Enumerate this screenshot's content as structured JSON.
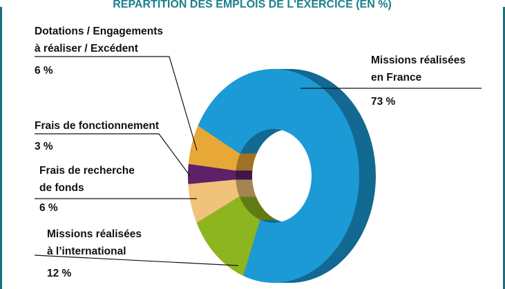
{
  "chart_data": {
    "type": "donut",
    "title": "RÉPARTITION DES EMPLOIS DE L'EXERCICE (EN %)",
    "categories": [
      "Missions réalisées\nen France",
      "Missions réalisées\nà l’international",
      "Frais de recherche\nde fonds",
      "Frais de fonctionnement",
      "Dotations / Engagements\nà réaliser / Excédent"
    ],
    "values": [
      73,
      12,
      6,
      3,
      6
    ],
    "value_labels": [
      "73 %",
      "12 %",
      "6 %",
      "3 %",
      "6 %"
    ],
    "colors": [
      "#1b9ad6",
      "#8db51f",
      "#f0c27a",
      "#5e2169",
      "#e8a838"
    ]
  }
}
